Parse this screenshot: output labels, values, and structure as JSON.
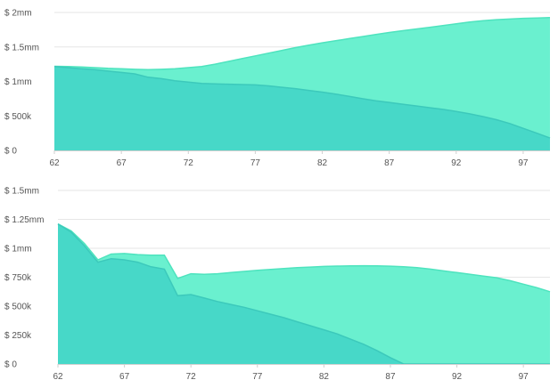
{
  "colors": {
    "light_area": "#6af0cf",
    "dark_area": "#47d8c8",
    "light_line": "#4ee3be",
    "dark_line": "#3cc9bb"
  },
  "chart_data": [
    {
      "type": "area",
      "title": "",
      "xlabel": "",
      "ylabel": "",
      "grid": true,
      "xlim": [
        62,
        99
      ],
      "ylim": [
        0,
        2000000
      ],
      "x_ticks": [
        "62",
        "67",
        "72",
        "77",
        "82",
        "87",
        "92",
        "97"
      ],
      "y_ticks": [
        "$ 0",
        "$ 500k",
        "$ 1mm",
        "$ 1.5mm",
        "$ 2mm"
      ],
      "x": [
        62,
        63,
        64,
        65,
        66,
        67,
        68,
        69,
        70,
        71,
        72,
        73,
        74,
        75,
        76,
        77,
        78,
        79,
        80,
        81,
        82,
        83,
        84,
        85,
        86,
        87,
        88,
        89,
        90,
        91,
        92,
        93,
        94,
        95,
        96,
        97,
        98,
        99
      ],
      "series": [
        {
          "values": [
            1220000,
            1215000,
            1210000,
            1200000,
            1190000,
            1185000,
            1175000,
            1170000,
            1175000,
            1185000,
            1200000,
            1215000,
            1250000,
            1290000,
            1330000,
            1370000,
            1410000,
            1450000,
            1490000,
            1525000,
            1560000,
            1590000,
            1620000,
            1650000,
            1680000,
            1710000,
            1735000,
            1760000,
            1785000,
            1810000,
            1835000,
            1860000,
            1880000,
            1895000,
            1905000,
            1915000,
            1920000,
            1925000
          ]
        },
        {
          "values": [
            1215000,
            1200000,
            1185000,
            1170000,
            1150000,
            1130000,
            1110000,
            1060000,
            1040000,
            1010000,
            990000,
            970000,
            965000,
            960000,
            955000,
            950000,
            935000,
            915000,
            895000,
            870000,
            845000,
            815000,
            785000,
            750000,
            720000,
            695000,
            670000,
            645000,
            620000,
            595000,
            565000,
            530000,
            490000,
            445000,
            390000,
            320000,
            250000,
            180000
          ]
        }
      ]
    },
    {
      "type": "area",
      "title": "",
      "xlabel": "",
      "ylabel": "",
      "grid": true,
      "xlim": [
        62,
        99
      ],
      "ylim": [
        0,
        1500000
      ],
      "x_ticks": [
        "62",
        "67",
        "72",
        "77",
        "82",
        "87",
        "92",
        "97"
      ],
      "y_ticks": [
        "$ 0",
        "$ 250k",
        "$ 500k",
        "$ 750k",
        "$ 1mm",
        "$ 1.25mm",
        "$ 1.5mm"
      ],
      "x": [
        62,
        63,
        64,
        65,
        66,
        67,
        68,
        69,
        70,
        71,
        72,
        73,
        74,
        75,
        76,
        77,
        78,
        79,
        80,
        81,
        82,
        83,
        84,
        85,
        86,
        87,
        88,
        89,
        90,
        91,
        92,
        93,
        94,
        95,
        96,
        97,
        98,
        99
      ],
      "series": [
        {
          "values": [
            1210000,
            1150000,
            1040000,
            900000,
            950000,
            955000,
            945000,
            940000,
            940000,
            740000,
            780000,
            775000,
            780000,
            790000,
            800000,
            810000,
            818000,
            825000,
            832000,
            838000,
            843000,
            846000,
            848000,
            849000,
            848000,
            845000,
            840000,
            832000,
            820000,
            805000,
            790000,
            775000,
            760000,
            745000,
            720000,
            690000,
            660000,
            625000
          ]
        },
        {
          "values": [
            1210000,
            1140000,
            1020000,
            880000,
            910000,
            900000,
            880000,
            840000,
            820000,
            590000,
            600000,
            570000,
            540000,
            515000,
            490000,
            460000,
            430000,
            400000,
            365000,
            330000,
            295000,
            260000,
            215000,
            170000,
            115000,
            55000,
            0,
            0,
            0,
            0,
            0,
            0,
            0,
            0,
            0,
            0,
            0,
            0
          ]
        }
      ]
    }
  ]
}
